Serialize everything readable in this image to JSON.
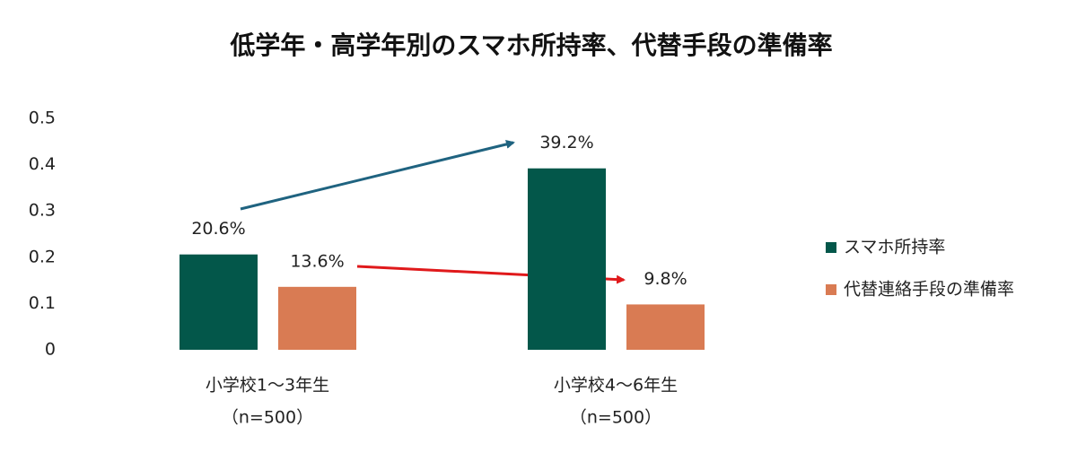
{
  "chart_data": {
    "type": "bar",
    "title": "低学年・高学年別のスマホ所持率、代替手段の準備率",
    "categories": [
      "小学校1～3年生",
      "小学校4～6年生"
    ],
    "category_notes": [
      "（n=500）",
      "（n=500）"
    ],
    "series": [
      {
        "name": "スマホ所持率",
        "color": "#03574a",
        "values": [
          0.206,
          0.392
        ],
        "value_labels": [
          "20.6%",
          "39.2%"
        ]
      },
      {
        "name": "代替連絡手段の準備率",
        "color": "#d97b53",
        "values": [
          0.136,
          0.098
        ],
        "value_labels": [
          "13.6%",
          "9.8%"
        ]
      }
    ],
    "ylim": [
      0,
      0.5
    ],
    "yticks": [
      0,
      0.1,
      0.2,
      0.3,
      0.4,
      0.5
    ],
    "grid": false,
    "legend": "right"
  }
}
